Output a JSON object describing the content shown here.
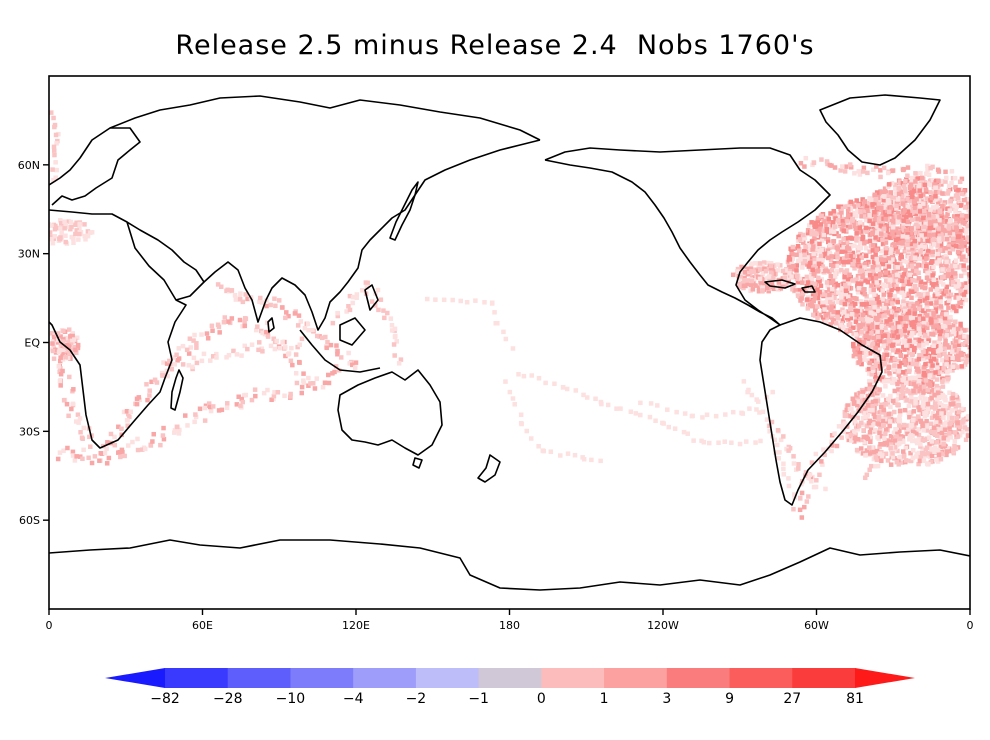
{
  "title": "Release 2.5 minus Release 2.4  Nobs 1760's",
  "map": {
    "projection": "cylindrical equidistant",
    "lon_range": [
      0,
      360
    ],
    "lat_range": [
      -90,
      90
    ],
    "x_ticks": [
      {
        "lon": 0,
        "label": "0"
      },
      {
        "lon": 60,
        "label": "60E"
      },
      {
        "lon": 120,
        "label": "120E"
      },
      {
        "lon": 180,
        "label": "180"
      },
      {
        "lon": 240,
        "label": "120W"
      },
      {
        "lon": 300,
        "label": "60W"
      },
      {
        "lon": 360,
        "label": "0"
      }
    ],
    "y_ticks": [
      {
        "lat": 60,
        "label": "60N"
      },
      {
        "lat": 30,
        "label": "30N"
      },
      {
        "lat": 0,
        "label": "EQ"
      },
      {
        "lat": -30,
        "label": "30S"
      },
      {
        "lat": -60,
        "label": "60S"
      }
    ],
    "field_color": "#f87878",
    "coast_color": "#000000"
  },
  "colorbar": {
    "labels": [
      "−82",
      "−28",
      "−10",
      "−4",
      "−2",
      "−1",
      "0",
      "1",
      "3",
      "9",
      "27",
      "81"
    ],
    "colors": [
      "#1a1aff",
      "#3a3aff",
      "#5e5efc",
      "#7d7dfb",
      "#9e9efa",
      "#bdbdfa",
      "#d0c8d6",
      "#fcbcbc",
      "#fca0a0",
      "#fb7c7c",
      "#fb5c5c",
      "#fb3c3c",
      "#ff1a1a"
    ]
  }
}
